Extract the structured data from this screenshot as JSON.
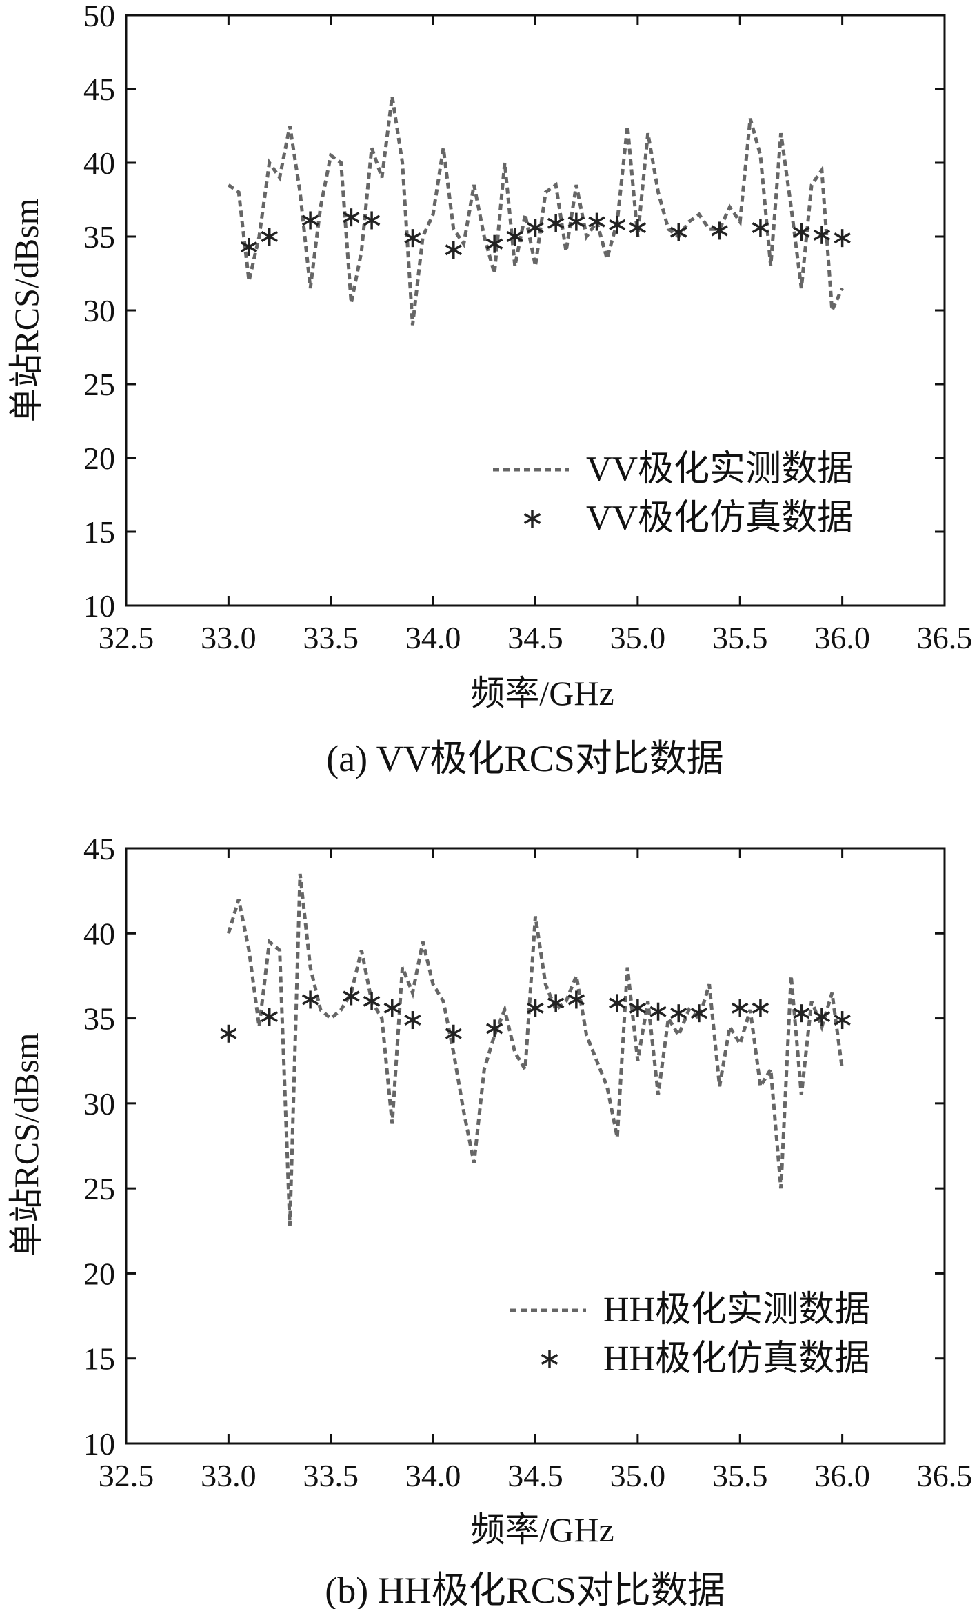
{
  "chart_data": [
    {
      "type": "line",
      "caption": "(a) VV极化RCS对比数据",
      "xlabel": "频率/GHz",
      "ylabel": "单站RCS/dBsm",
      "xlim": [
        32.5,
        36.5
      ],
      "ylim": [
        10,
        50
      ],
      "xticks": [
        "32.5",
        "33.0",
        "33.5",
        "34.0",
        "34.5",
        "35.0",
        "35.5",
        "36.0",
        "36.5"
      ],
      "yticks": [
        "10",
        "15",
        "20",
        "25",
        "30",
        "35",
        "40",
        "45",
        "50"
      ],
      "grid": false,
      "legend_position": "lower-right",
      "series": [
        {
          "name": "VV极化实测数据",
          "style": "dashed",
          "color": "#666666",
          "x": [
            33.0,
            33.05,
            33.1,
            33.15,
            33.2,
            33.25,
            33.3,
            33.35,
            33.4,
            33.45,
            33.5,
            33.55,
            33.6,
            33.65,
            33.7,
            33.75,
            33.8,
            33.85,
            33.9,
            33.95,
            34.0,
            34.05,
            34.1,
            34.15,
            34.2,
            34.25,
            34.3,
            34.35,
            34.4,
            34.45,
            34.5,
            34.55,
            34.6,
            34.65,
            34.7,
            34.75,
            34.8,
            34.85,
            34.9,
            34.95,
            35.0,
            35.05,
            35.1,
            35.15,
            35.2,
            35.25,
            35.3,
            35.35,
            35.4,
            35.45,
            35.5,
            35.55,
            35.6,
            35.65,
            35.7,
            35.75,
            35.8,
            35.85,
            35.9,
            35.95,
            36.0
          ],
          "y": [
            38.5,
            38.0,
            32.0,
            35.0,
            40.0,
            39.0,
            42.5,
            38.0,
            31.5,
            37.0,
            40.5,
            40.0,
            30.5,
            34.0,
            41.0,
            39.0,
            44.5,
            40.0,
            29.0,
            35.0,
            36.5,
            41.0,
            35.5,
            34.5,
            38.5,
            35.0,
            32.5,
            40.0,
            33.0,
            36.5,
            33.0,
            38.0,
            38.5,
            34.0,
            38.5,
            35.0,
            36.0,
            33.5,
            36.0,
            42.5,
            35.0,
            42.0,
            38.0,
            35.5,
            35.0,
            36.0,
            36.5,
            35.5,
            35.5,
            37.0,
            36.0,
            43.0,
            40.5,
            33.0,
            42.0,
            37.0,
            31.5,
            38.5,
            39.5,
            30.0,
            31.5
          ]
        },
        {
          "name": "VV极化仿真数据",
          "style": "asterisk",
          "color": "#222222",
          "x": [
            33.1,
            33.2,
            33.4,
            33.6,
            33.7,
            33.9,
            34.1,
            34.3,
            34.4,
            34.5,
            34.6,
            34.7,
            34.8,
            34.9,
            35.0,
            35.2,
            35.4,
            35.6,
            35.8,
            35.9,
            36.0
          ],
          "y": [
            34.3,
            35.0,
            36.1,
            36.3,
            36.1,
            34.9,
            34.1,
            34.5,
            35.0,
            35.6,
            35.9,
            36.0,
            36.0,
            35.8,
            35.6,
            35.3,
            35.4,
            35.6,
            35.3,
            35.1,
            34.9
          ]
        }
      ]
    },
    {
      "type": "line",
      "caption": "(b) HH极化RCS对比数据",
      "xlabel": "频率/GHz",
      "ylabel": "单站RCS/dBsm",
      "xlim": [
        32.5,
        36.5
      ],
      "ylim": [
        10,
        45
      ],
      "xticks": [
        "32.5",
        "33.0",
        "33.5",
        "34.0",
        "34.5",
        "35.0",
        "35.5",
        "36.0",
        "36.5"
      ],
      "yticks": [
        "10",
        "15",
        "20",
        "25",
        "30",
        "35",
        "40",
        "45"
      ],
      "grid": false,
      "legend_position": "lower-right",
      "series": [
        {
          "name": "HH极化实测数据",
          "style": "dashed",
          "color": "#666666",
          "x": [
            33.0,
            33.05,
            33.1,
            33.15,
            33.2,
            33.25,
            33.3,
            33.35,
            33.4,
            33.45,
            33.5,
            33.55,
            33.6,
            33.65,
            33.7,
            33.75,
            33.8,
            33.85,
            33.9,
            33.95,
            34.0,
            34.05,
            34.1,
            34.15,
            34.2,
            34.25,
            34.3,
            34.35,
            34.4,
            34.45,
            34.5,
            34.55,
            34.6,
            34.65,
            34.7,
            34.75,
            34.8,
            34.85,
            34.9,
            34.95,
            35.0,
            35.05,
            35.1,
            35.15,
            35.2,
            35.25,
            35.3,
            35.35,
            35.4,
            35.45,
            35.5,
            35.55,
            35.6,
            35.65,
            35.7,
            35.75,
            35.8,
            35.85,
            35.9,
            35.95,
            36.0
          ],
          "y": [
            40.0,
            42.0,
            39.0,
            34.5,
            39.5,
            39.0,
            22.8,
            43.5,
            38.0,
            35.5,
            35.0,
            35.5,
            36.5,
            39.0,
            36.0,
            35.0,
            28.8,
            38.0,
            36.5,
            39.5,
            37.0,
            36.0,
            33.0,
            29.5,
            26.5,
            32.0,
            34.0,
            35.5,
            33.0,
            32.0,
            41.0,
            37.0,
            35.5,
            36.0,
            37.5,
            34.0,
            32.5,
            31.0,
            28.0,
            38.0,
            32.5,
            36.0,
            30.5,
            35.0,
            34.0,
            35.5,
            35.0,
            37.0,
            31.0,
            34.5,
            33.5,
            35.5,
            31.0,
            32.0,
            25.0,
            37.5,
            30.5,
            36.0,
            34.5,
            36.5,
            32.0
          ]
        },
        {
          "name": "HH极化仿真数据",
          "style": "asterisk",
          "color": "#222222",
          "x": [
            33.0,
            33.2,
            33.4,
            33.6,
            33.7,
            33.8,
            33.9,
            34.1,
            34.3,
            34.5,
            34.6,
            34.7,
            34.9,
            35.0,
            35.1,
            35.2,
            35.3,
            35.5,
            35.6,
            35.8,
            35.9,
            36.0
          ],
          "y": [
            34.1,
            35.1,
            36.1,
            36.3,
            36.0,
            35.6,
            34.9,
            34.1,
            34.4,
            35.6,
            35.9,
            36.1,
            35.9,
            35.6,
            35.4,
            35.3,
            35.3,
            35.6,
            35.6,
            35.3,
            35.1,
            34.9
          ]
        }
      ]
    }
  ]
}
